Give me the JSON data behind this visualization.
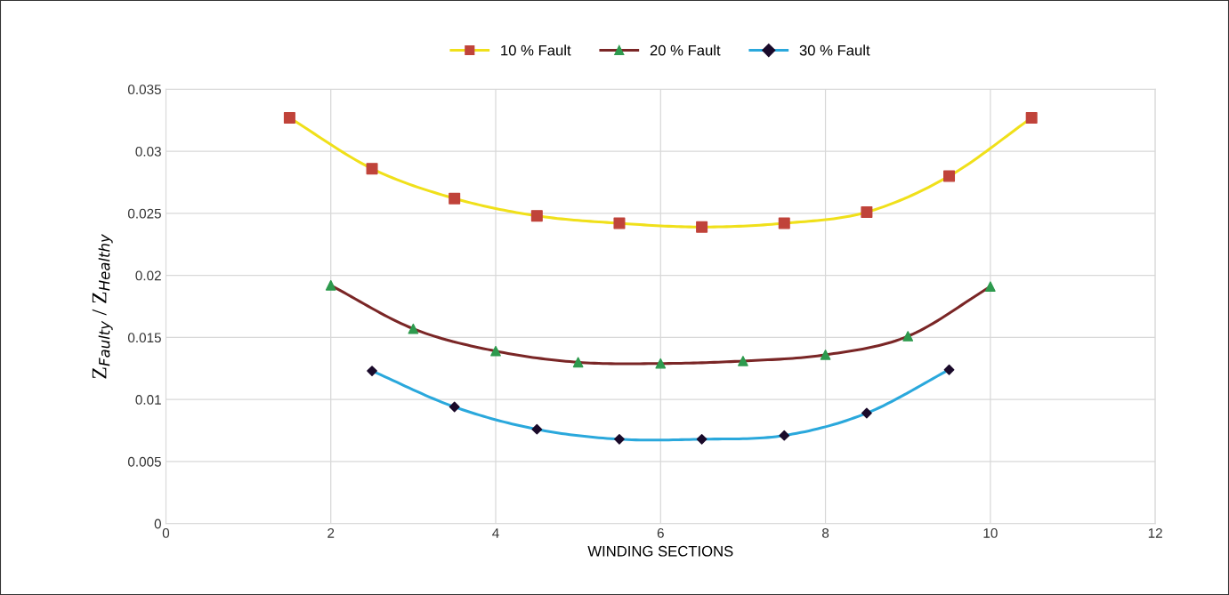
{
  "chart_data": {
    "type": "line",
    "xlabel": "WINDING SECTIONS",
    "ylabel": "Z$_{Faulty}$ / Z$_{Healthy}$",
    "xlim": [
      0,
      12
    ],
    "xticks": [
      0,
      2,
      4,
      6,
      8,
      10,
      12
    ],
    "ylim": [
      0,
      0.035
    ],
    "yticks": [
      0,
      0.005,
      0.01,
      0.015,
      0.02,
      0.025,
      0.03,
      0.035
    ],
    "grid": true,
    "legend": "top",
    "line_style": "solid",
    "series": [
      {
        "name": "10 % Fault",
        "color": "#f0e01a",
        "colors": [
          "#c0433a",
          "#c0433a",
          "#c0433a",
          "#c0433a",
          "#c0433a",
          "#c0433a",
          "#c0433a",
          "#c0433a",
          "#c0433a",
          "#c0433a"
        ],
        "marker": "square",
        "x": [
          1.5,
          2.5,
          3.5,
          4.5,
          5.5,
          6.5,
          7.5,
          8.5,
          9.5,
          10.5
        ],
        "values": [
          0.0327,
          0.0286,
          0.0262,
          0.0248,
          0.0242,
          0.0239,
          0.0242,
          0.0251,
          0.028,
          0.0327
        ]
      },
      {
        "name": "20 % Fault",
        "color": "#7a2626",
        "colors": [
          "#2e9a4e",
          "#2e9a4e",
          "#2e9a4e",
          "#2e9a4e",
          "#2e9a4e",
          "#2e9a4e",
          "#2e9a4e",
          "#2e9a4e",
          "#2e9a4e"
        ],
        "marker": "triangle",
        "x": [
          2,
          3,
          4,
          5,
          6,
          7,
          8,
          9,
          10
        ],
        "values": [
          0.0192,
          0.0157,
          0.0139,
          0.013,
          0.0129,
          0.0131,
          0.0136,
          0.0151,
          0.0191
        ]
      },
      {
        "name": "30 % Fault",
        "color": "#2aa8dc",
        "colors": [
          "#1a0a2a",
          "#1a0a2a",
          "#1a0a2a",
          "#1a0a2a",
          "#1a0a2a",
          "#1a0a2a",
          "#1a0a2a",
          "#1a0a2a"
        ],
        "marker": "diamond",
        "x": [
          2.5,
          3.5,
          4.5,
          5.5,
          6.5,
          7.5,
          8.5,
          9.5
        ],
        "values": [
          0.0123,
          0.0094,
          0.0076,
          0.0068,
          0.0068,
          0.0071,
          0.0089,
          0.0124
        ]
      }
    ]
  }
}
